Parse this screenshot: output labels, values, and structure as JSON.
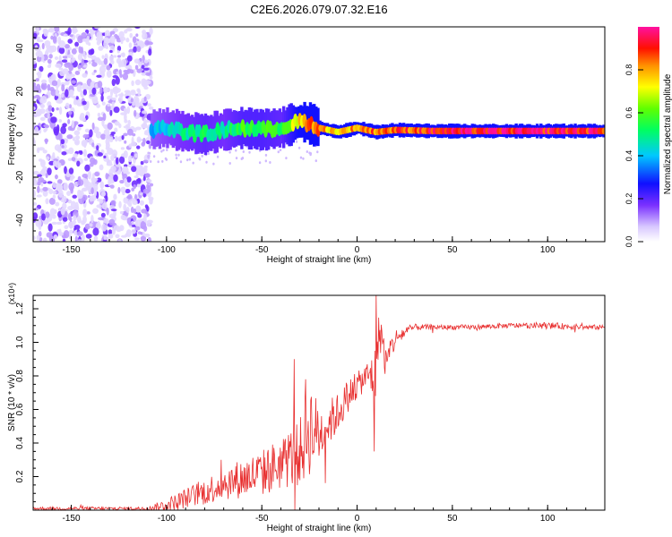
{
  "figure_title": "C2E6.2026.079.07.32.E16",
  "colors": {
    "snr_line": "#e83030",
    "axis": "#000000",
    "background": "#ffffff"
  },
  "chart_data": [
    {
      "type": "heatmap",
      "title": "C2E6.2026.079.07.32.E16",
      "xlabel": "Height of straight line (km)",
      "ylabel": "Frequency (Hz)",
      "xlim": [
        -170,
        130
      ],
      "ylim": [
        -50,
        50
      ],
      "x_ticks": [
        -150,
        -100,
        -50,
        0,
        50,
        100
      ],
      "y_ticks": [
        -40,
        -20,
        0,
        20,
        40
      ],
      "colorbar": {
        "label": "Normalized spectral amplitude",
        "range": [
          0,
          1
        ],
        "ticks": [
          "0.0",
          "0.2",
          "0.4",
          "0.6",
          "0.8"
        ]
      },
      "noise_region": {
        "x_range": [
          -170,
          -108
        ],
        "y_range": [
          -50,
          50
        ],
        "amplitude": 0.1
      },
      "signal_track": {
        "description": "frequency centroid of the main spectral track vs height",
        "height_km": [
          -110,
          -100,
          -90,
          -80,
          -70,
          -60,
          -50,
          -40,
          -30,
          -25,
          -20,
          -10,
          0,
          10,
          20,
          40,
          60,
          80,
          100,
          130
        ],
        "frequency_hz": [
          2,
          3,
          1,
          0,
          2,
          3,
          2,
          3,
          6,
          5,
          3,
          1,
          3,
          1,
          2,
          1.5,
          1.5,
          1.5,
          1.5,
          1.5
        ],
        "amplitude": [
          0.4,
          0.45,
          0.5,
          0.55,
          0.5,
          0.6,
          0.6,
          0.55,
          0.8,
          0.9,
          0.85,
          0.8,
          0.85,
          0.9,
          0.9,
          0.95,
          0.97,
          0.98,
          0.98,
          0.97
        ]
      }
    },
    {
      "type": "line",
      "xlabel": "Height of straight line (km)",
      "ylabel": "SNR (10 * v/v)",
      "y_scale_label": "(x10⁴)",
      "xlim": [
        -170,
        130
      ],
      "ylim": [
        0,
        1.28
      ],
      "x_ticks": [
        -150,
        -100,
        -50,
        0,
        50,
        100
      ],
      "y_ticks": [
        0.2,
        0.4,
        0.6,
        0.8,
        1.0,
        1.2
      ],
      "y_tick_labels": [
        "0.2",
        "0.4",
        "0.6",
        "0.8",
        "1.0",
        "1.2"
      ],
      "series": [
        {
          "name": "SNR",
          "x": [
            -170,
            -140,
            -110,
            -100,
            -90,
            -80,
            -70,
            -60,
            -50,
            -40,
            -30,
            -25,
            -20,
            -15,
            -10,
            -5,
            0,
            5,
            10,
            12,
            15,
            20,
            25,
            30,
            40,
            60,
            80,
            100,
            120,
            130
          ],
          "y": [
            0.01,
            0.01,
            0.01,
            0.03,
            0.07,
            0.11,
            0.16,
            0.19,
            0.22,
            0.28,
            0.34,
            0.5,
            0.45,
            0.52,
            0.58,
            0.68,
            0.74,
            0.8,
            0.8,
            1.1,
            0.88,
            1.02,
            1.06,
            1.09,
            1.09,
            1.09,
            1.1,
            1.1,
            1.09,
            1.09
          ],
          "noise_amplitude": [
            0.01,
            0.01,
            0.01,
            0.04,
            0.06,
            0.08,
            0.1,
            0.12,
            0.14,
            0.16,
            0.2,
            0.3,
            0.18,
            0.14,
            0.12,
            0.1,
            0.08,
            0.08,
            0.2,
            0.15,
            0.1,
            0.06,
            0.04,
            0.02,
            0.015,
            0.015,
            0.015,
            0.02,
            0.015,
            0.015
          ],
          "peaks": [
            {
              "x": -33,
              "y": 0.9
            },
            {
              "x": -27,
              "y": 0.78
            },
            {
              "x": 10,
              "y": 1.28
            },
            {
              "x": 9,
              "y": 0.35
            }
          ]
        }
      ]
    }
  ]
}
